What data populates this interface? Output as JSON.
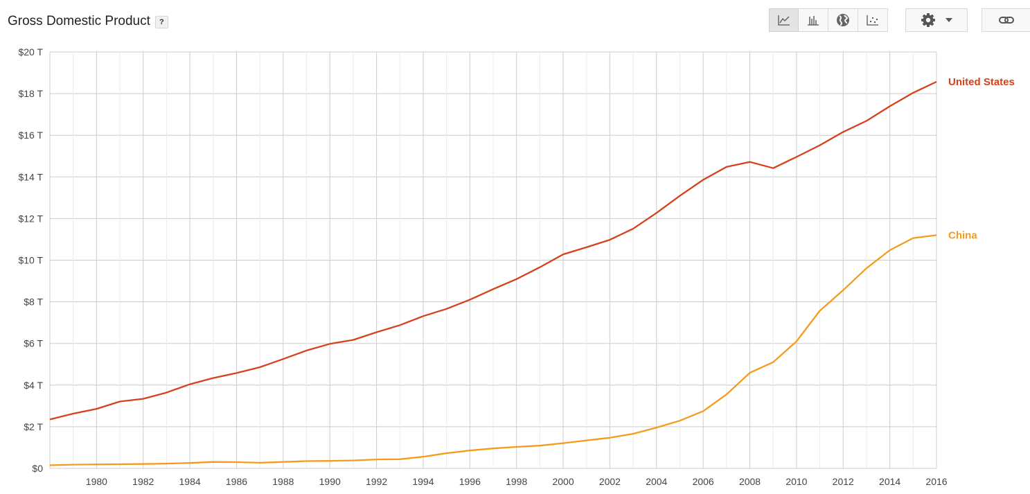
{
  "header": {
    "title": "Gross Domestic Product",
    "help_label": "?"
  },
  "toolbar": {
    "buttons": [
      {
        "icon": "line-chart-icon",
        "active": true
      },
      {
        "icon": "bar-chart-icon",
        "active": false
      },
      {
        "icon": "globe-icon",
        "active": false
      },
      {
        "icon": "scatter-chart-icon",
        "active": false
      }
    ],
    "settings_icon": "gear-icon",
    "dropdown_icon": "caret-down-icon",
    "link_icon": "link-icon"
  },
  "chart_data": {
    "type": "line",
    "title": "Gross Domestic Product",
    "xlabel": "",
    "ylabel": "",
    "xlim": [
      1978,
      2016
    ],
    "ylim": [
      0,
      20
    ],
    "x_ticks": [
      "1980",
      "1982",
      "1984",
      "1986",
      "1988",
      "1990",
      "1992",
      "1994",
      "1996",
      "1998",
      "2000",
      "2002",
      "2004",
      "2006",
      "2008",
      "2010",
      "2012",
      "2014",
      "2016"
    ],
    "y_ticks": [
      "$0",
      "$2 T",
      "$4 T",
      "$6 T",
      "$8 T",
      "$10 T",
      "$12 T",
      "$14 T",
      "$16 T",
      "$18 T",
      "$20 T"
    ],
    "grid": true,
    "legend": "right-inline",
    "x": [
      1978,
      1979,
      1980,
      1981,
      1982,
      1983,
      1984,
      1985,
      1986,
      1987,
      1988,
      1989,
      1990,
      1991,
      1992,
      1993,
      1994,
      1995,
      1996,
      1997,
      1998,
      1999,
      2000,
      2001,
      2002,
      2003,
      2004,
      2005,
      2006,
      2007,
      2008,
      2009,
      2010,
      2011,
      2012,
      2013,
      2014,
      2015,
      2016
    ],
    "series": [
      {
        "name": "United States",
        "color": "#d6401a",
        "values": [
          2.35,
          2.63,
          2.86,
          3.21,
          3.34,
          3.64,
          4.04,
          4.34,
          4.58,
          4.86,
          5.25,
          5.66,
          5.98,
          6.17,
          6.54,
          6.88,
          7.31,
          7.66,
          8.1,
          8.61,
          9.09,
          9.66,
          10.28,
          10.62,
          10.98,
          11.51,
          12.27,
          13.09,
          13.86,
          14.48,
          14.72,
          14.42,
          14.96,
          15.52,
          16.16,
          16.69,
          17.39,
          18.04,
          18.57
        ]
      },
      {
        "name": "China",
        "color": "#f59b1c",
        "values": [
          0.15,
          0.18,
          0.19,
          0.2,
          0.21,
          0.23,
          0.26,
          0.31,
          0.3,
          0.27,
          0.31,
          0.35,
          0.36,
          0.38,
          0.43,
          0.44,
          0.56,
          0.73,
          0.86,
          0.96,
          1.03,
          1.09,
          1.21,
          1.34,
          1.47,
          1.66,
          1.96,
          2.29,
          2.75,
          3.55,
          4.59,
          5.1,
          6.1,
          7.57,
          8.56,
          9.61,
          10.48,
          11.06,
          11.2
        ]
      }
    ]
  }
}
